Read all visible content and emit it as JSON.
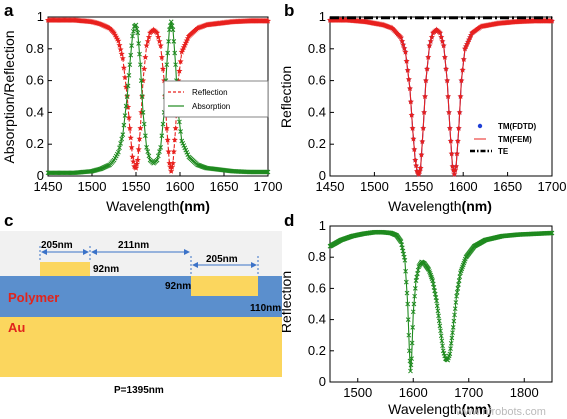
{
  "panel_labels": {
    "a": "a",
    "b": "b",
    "c": "c",
    "d": "d"
  },
  "watermark": "www.nfrobots.com",
  "colors": {
    "red": "#e8211e",
    "green": "#1f8a1f",
    "blue": "#1f3fd6",
    "polymer": "#5b8fcd",
    "gold": "#fbd65e",
    "gray_pad": "#f1f1f1"
  },
  "chart_data": [
    {
      "panel": "a",
      "type": "line",
      "xlabel_main": "Wavelength",
      "xlabel_unit": "(nm)",
      "ylabel": "Absorption/Reflection",
      "xlim": [
        1450,
        1700
      ],
      "ylim": [
        0,
        1
      ],
      "xticks": [
        "1450",
        "1500",
        "1550",
        "1600",
        "1650",
        "1700"
      ],
      "yticks": [
        "0",
        "0.2",
        "0.4",
        "0.6",
        "0.8",
        "1"
      ],
      "legend": "right",
      "series": [
        {
          "name": "Reflection",
          "color": "#e8211e",
          "marker": "star",
          "dashed": true,
          "points": [
            [
              1450,
              0.98
            ],
            [
              1460,
              0.98
            ],
            [
              1470,
              0.98
            ],
            [
              1480,
              0.98
            ],
            [
              1490,
              0.975
            ],
            [
              1500,
              0.97
            ],
            [
              1510,
              0.955
            ],
            [
              1520,
              0.93
            ],
            [
              1525,
              0.9
            ],
            [
              1530,
              0.85
            ],
            [
              1535,
              0.74
            ],
            [
              1540,
              0.5
            ],
            [
              1543,
              0.3
            ],
            [
              1546,
              0.12
            ],
            [
              1548,
              0.06
            ],
            [
              1550,
              0.05
            ],
            [
              1552,
              0.1
            ],
            [
              1555,
              0.3
            ],
            [
              1558,
              0.6
            ],
            [
              1562,
              0.82
            ],
            [
              1566,
              0.9
            ],
            [
              1570,
              0.92
            ],
            [
              1574,
              0.9
            ],
            [
              1578,
              0.82
            ],
            [
              1582,
              0.6
            ],
            [
              1585,
              0.3
            ],
            [
              1588,
              0.08
            ],
            [
              1590,
              0.03
            ],
            [
              1592,
              0.08
            ],
            [
              1595,
              0.3
            ],
            [
              1598,
              0.6
            ],
            [
              1602,
              0.78
            ],
            [
              1610,
              0.88
            ],
            [
              1620,
              0.93
            ],
            [
              1630,
              0.95
            ],
            [
              1645,
              0.96
            ],
            [
              1660,
              0.97
            ],
            [
              1680,
              0.975
            ],
            [
              1700,
              0.975
            ]
          ]
        },
        {
          "name": "Absorption",
          "color": "#1f8a1f",
          "marker": "x",
          "dashed": false,
          "points": [
            [
              1450,
              0.02
            ],
            [
              1460,
              0.02
            ],
            [
              1470,
              0.02
            ],
            [
              1480,
              0.02
            ],
            [
              1490,
              0.025
            ],
            [
              1500,
              0.03
            ],
            [
              1510,
              0.045
            ],
            [
              1520,
              0.07
            ],
            [
              1525,
              0.1
            ],
            [
              1530,
              0.15
            ],
            [
              1535,
              0.26
            ],
            [
              1540,
              0.5
            ],
            [
              1543,
              0.7
            ],
            [
              1546,
              0.88
            ],
            [
              1548,
              0.94
            ],
            [
              1550,
              0.95
            ],
            [
              1552,
              0.9
            ],
            [
              1555,
              0.7
            ],
            [
              1558,
              0.4
            ],
            [
              1562,
              0.18
            ],
            [
              1566,
              0.1
            ],
            [
              1570,
              0.08
            ],
            [
              1574,
              0.1
            ],
            [
              1578,
              0.18
            ],
            [
              1582,
              0.4
            ],
            [
              1585,
              0.7
            ],
            [
              1588,
              0.92
            ],
            [
              1590,
              0.97
            ],
            [
              1592,
              0.92
            ],
            [
              1595,
              0.7
            ],
            [
              1598,
              0.4
            ],
            [
              1602,
              0.22
            ],
            [
              1610,
              0.12
            ],
            [
              1620,
              0.07
            ],
            [
              1630,
              0.05
            ],
            [
              1645,
              0.04
            ],
            [
              1660,
              0.03
            ],
            [
              1680,
              0.025
            ],
            [
              1700,
              0.025
            ]
          ]
        }
      ]
    },
    {
      "panel": "b",
      "type": "line",
      "xlabel_main": "Wavelength",
      "xlabel_unit": "(nm)",
      "ylabel": "Reflection",
      "xlim": [
        1450,
        1700
      ],
      "ylim": [
        0,
        1
      ],
      "xticks": [
        "1450",
        "1500",
        "1550",
        "1600",
        "1650",
        "1700"
      ],
      "yticks": [
        "0",
        "0.2",
        "0.4",
        "0.6",
        "0.8",
        "1"
      ],
      "legend": "right",
      "series": [
        {
          "name": "TM(FDTD)",
          "color": "#1f3fd6",
          "marker": "dot",
          "points": [
            [
              1450,
              0.98
            ],
            [
              1470,
              0.98
            ],
            [
              1490,
              0.97
            ],
            [
              1510,
              0.95
            ],
            [
              1520,
              0.93
            ],
            [
              1530,
              0.87
            ],
            [
              1535,
              0.78
            ],
            [
              1540,
              0.55
            ],
            [
              1543,
              0.3
            ],
            [
              1546,
              0.1
            ],
            [
              1548,
              0.03
            ],
            [
              1550,
              0.01
            ],
            [
              1552,
              0.05
            ],
            [
              1555,
              0.3
            ],
            [
              1558,
              0.6
            ],
            [
              1562,
              0.82
            ],
            [
              1566,
              0.9
            ],
            [
              1570,
              0.92
            ],
            [
              1574,
              0.9
            ],
            [
              1578,
              0.82
            ],
            [
              1582,
              0.6
            ],
            [
              1585,
              0.3
            ],
            [
              1588,
              0.06
            ],
            [
              1590,
              0.01
            ],
            [
              1592,
              0.06
            ],
            [
              1595,
              0.3
            ],
            [
              1598,
              0.6
            ],
            [
              1602,
              0.8
            ],
            [
              1610,
              0.9
            ],
            [
              1620,
              0.94
            ],
            [
              1640,
              0.96
            ],
            [
              1660,
              0.97
            ],
            [
              1680,
              0.975
            ],
            [
              1700,
              0.975
            ]
          ]
        },
        {
          "name": "TM(FEM)",
          "color": "#e8211e",
          "marker": "star",
          "points": [
            [
              1450,
              0.98
            ],
            [
              1470,
              0.98
            ],
            [
              1490,
              0.97
            ],
            [
              1510,
              0.95
            ],
            [
              1520,
              0.93
            ],
            [
              1530,
              0.87
            ],
            [
              1535,
              0.78
            ],
            [
              1540,
              0.55
            ],
            [
              1543,
              0.3
            ],
            [
              1546,
              0.1
            ],
            [
              1548,
              0.03
            ],
            [
              1550,
              0.01
            ],
            [
              1552,
              0.05
            ],
            [
              1555,
              0.3
            ],
            [
              1558,
              0.6
            ],
            [
              1562,
              0.82
            ],
            [
              1566,
              0.9
            ],
            [
              1570,
              0.92
            ],
            [
              1574,
              0.9
            ],
            [
              1578,
              0.82
            ],
            [
              1582,
              0.6
            ],
            [
              1585,
              0.3
            ],
            [
              1588,
              0.06
            ],
            [
              1590,
              0.01
            ],
            [
              1592,
              0.06
            ],
            [
              1595,
              0.3
            ],
            [
              1598,
              0.6
            ],
            [
              1602,
              0.8
            ],
            [
              1610,
              0.9
            ],
            [
              1620,
              0.94
            ],
            [
              1640,
              0.96
            ],
            [
              1660,
              0.97
            ],
            [
              1680,
              0.975
            ],
            [
              1700,
              0.975
            ]
          ]
        },
        {
          "name": "TE",
          "color": "#000000",
          "marker": "none",
          "dashdot": true,
          "points": [
            [
              1450,
              0.995
            ],
            [
              1700,
              0.995
            ]
          ]
        }
      ]
    },
    {
      "panel": "d",
      "type": "line",
      "xlabel_main": "Wavelength",
      "xlabel_unit": "(nm)",
      "ylabel": "Reflection",
      "xlim": [
        1450,
        1850
      ],
      "ylim": [
        0,
        1
      ],
      "xticks": [
        "1500",
        "1600",
        "1700",
        "1800"
      ],
      "yticks": [
        "0",
        "0.2",
        "0.4",
        "0.6",
        "0.8",
        "1"
      ],
      "series": [
        {
          "color": "#1f8a1f",
          "marker": "x",
          "points": [
            [
              1450,
              0.87
            ],
            [
              1470,
              0.91
            ],
            [
              1490,
              0.935
            ],
            [
              1510,
              0.95
            ],
            [
              1530,
              0.96
            ],
            [
              1545,
              0.96
            ],
            [
              1560,
              0.955
            ],
            [
              1570,
              0.94
            ],
            [
              1578,
              0.9
            ],
            [
              1585,
              0.78
            ],
            [
              1590,
              0.5
            ],
            [
              1593,
              0.2
            ],
            [
              1595,
              0.07
            ],
            [
              1597,
              0.15
            ],
            [
              1600,
              0.45
            ],
            [
              1605,
              0.65
            ],
            [
              1610,
              0.74
            ],
            [
              1615,
              0.77
            ],
            [
              1620,
              0.76
            ],
            [
              1628,
              0.72
            ],
            [
              1635,
              0.65
            ],
            [
              1642,
              0.52
            ],
            [
              1648,
              0.36
            ],
            [
              1654,
              0.2
            ],
            [
              1658,
              0.15
            ],
            [
              1662,
              0.14
            ],
            [
              1666,
              0.18
            ],
            [
              1672,
              0.35
            ],
            [
              1678,
              0.55
            ],
            [
              1685,
              0.7
            ],
            [
              1695,
              0.8
            ],
            [
              1710,
              0.87
            ],
            [
              1730,
              0.91
            ],
            [
              1760,
              0.935
            ],
            [
              1790,
              0.945
            ],
            [
              1820,
              0.95
            ],
            [
              1850,
              0.955
            ]
          ]
        }
      ]
    }
  ],
  "schematic": {
    "dims": {
      "left_block": "205nm",
      "gap": "211nm",
      "right_block": "205nm",
      "left_height": "92nm",
      "right_height": "92nm",
      "polymer_thickness": "110nm"
    },
    "materials": {
      "polymer": "Polymer",
      "metal": "Au"
    },
    "period": "P=1395nm"
  }
}
